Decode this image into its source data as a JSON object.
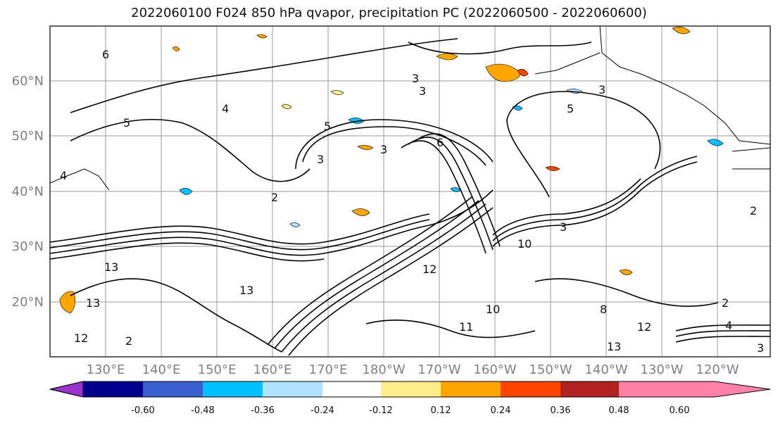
{
  "title": "2022060100 F024 850 hPa qvapor, precipitation PC (2022060500 - 2022060600)",
  "map": {
    "lon_labels": [
      "130°E",
      "140°E",
      "150°E",
      "160°E",
      "170°E",
      "180°W",
      "170°W",
      "160°W",
      "150°W",
      "140°W",
      "130°W",
      "120°W"
    ],
    "lat_labels": [
      "60°N",
      "50°N",
      "40°N",
      "30°N",
      "20°N"
    ],
    "contour_labels": [
      "6",
      "5",
      "3",
      "3",
      "5",
      "5",
      "3",
      "3",
      "2",
      "4",
      "6",
      "4",
      "3",
      "2",
      "3",
      "13",
      "13",
      "12",
      "12",
      "2",
      "10",
      "12",
      "13",
      "8",
      "11",
      "10",
      "13",
      "2",
      "4",
      "3"
    ]
  },
  "colorbar": {
    "colors": [
      "#9a32cd",
      "#00008b",
      "#3a5fcd",
      "#00bfff",
      "#b0e2ff",
      "#ffffff",
      "#ffec8b",
      "#ffa500",
      "#ff4500",
      "#b22222",
      "#ff82ab"
    ],
    "tick_labels": [
      "-0.60",
      "-0.48",
      "-0.36",
      "-0.24",
      "-0.12",
      "0.12",
      "0.24",
      "0.36",
      "0.48",
      "0.60"
    ]
  }
}
